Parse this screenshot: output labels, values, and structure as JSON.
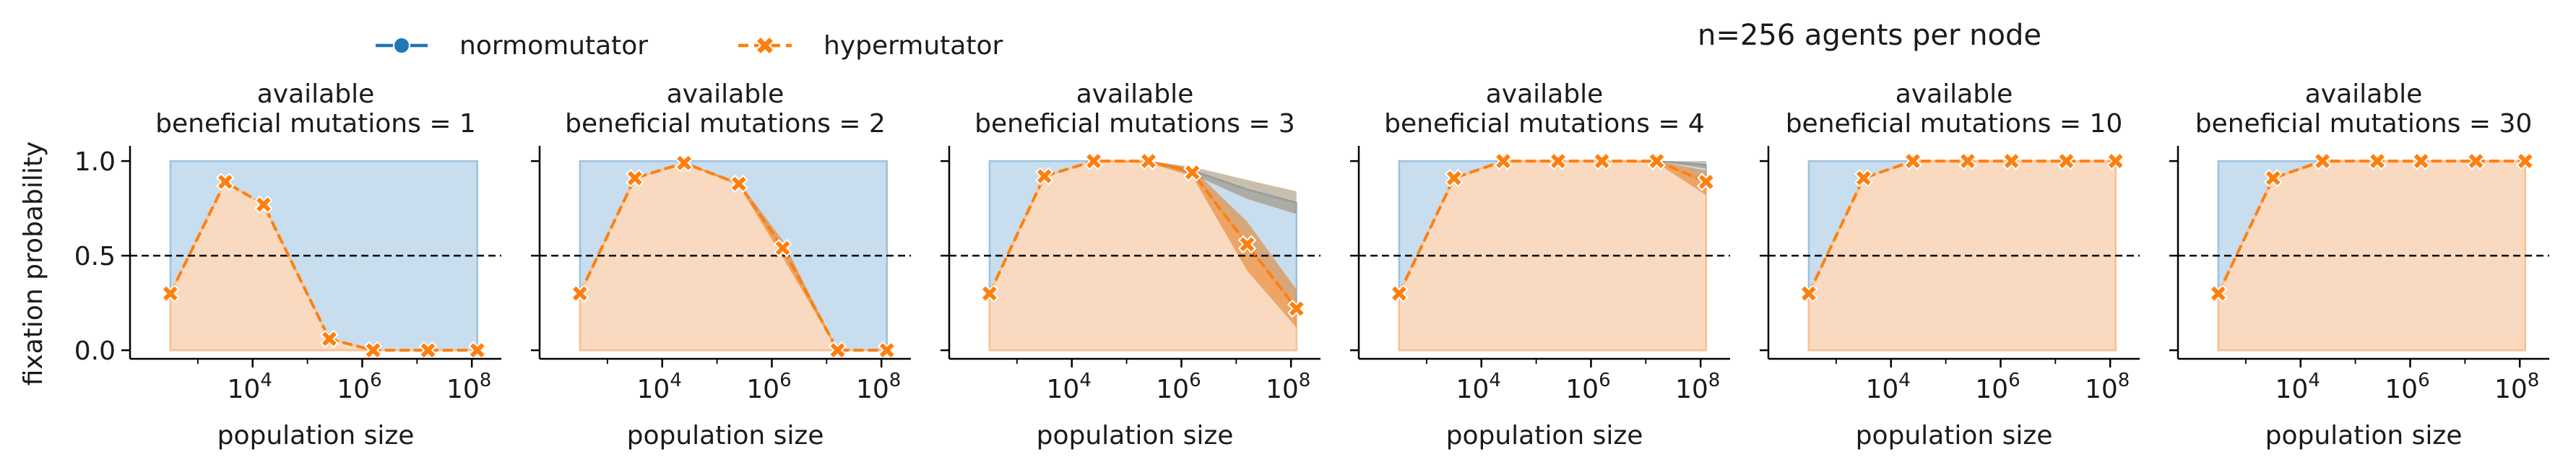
{
  "figure": {
    "suptitle": "n=256 agents per node",
    "ylabel": "fixation probability",
    "xlabel": "population size"
  },
  "legend": {
    "placement": "top-left",
    "items": [
      {
        "label": "normomutator",
        "color": "#1f77b4",
        "marker": "circle"
      },
      {
        "label": "hypermutator",
        "color": "#ff7f0e",
        "marker": "x"
      }
    ]
  },
  "colors": {
    "normomutator_band": "#c8ddee",
    "hypermutator_band": "#fdd9bd",
    "reference_line": "#000000"
  },
  "chart_data": [
    {
      "type": "line",
      "title": "available\nbeneficial mutations = 1",
      "x_scale": "log",
      "x": [
        316,
        3162,
        15849,
        251189,
        1584893,
        15848932,
        125892541
      ],
      "xlim": [
        100,
        200000000
      ],
      "x_ticks": [
        10000,
        1000000,
        100000000
      ],
      "x_tick_labels": [
        "10^4",
        "10^6",
        "10^8"
      ],
      "ylim": [
        -0.03,
        1.05
      ],
      "y_ticks": [
        0.0,
        0.5,
        1.0
      ],
      "y_tick_labels": [
        "0.0",
        "0.5",
        "1.0"
      ],
      "reference_line": 0.5,
      "series": [
        {
          "name": "normomutator",
          "values": [
            1.0,
            1.0,
            1.0,
            1.0,
            1.0,
            1.0,
            1.0
          ]
        },
        {
          "name": "hypermutator",
          "values": [
            0.3,
            0.89,
            0.77,
            0.06,
            0.0,
            0.0,
            0.0
          ],
          "lower": [
            0.3,
            0.89,
            0.77,
            0.06,
            0.0,
            0.0,
            0.0
          ],
          "upper": [
            0.3,
            0.89,
            0.77,
            0.06,
            0.0,
            0.0,
            0.0
          ]
        }
      ]
    },
    {
      "type": "line",
      "title": "available\nbeneficial mutations = 2",
      "x_scale": "log",
      "x": [
        316,
        3162,
        25119,
        251189,
        1584893,
        15848932,
        125892541
      ],
      "xlim": [
        100,
        200000000
      ],
      "x_ticks": [
        10000,
        1000000,
        100000000
      ],
      "x_tick_labels": [
        "10^4",
        "10^6",
        "10^8"
      ],
      "ylim": [
        -0.03,
        1.05
      ],
      "y_ticks": [
        0.0,
        0.5,
        1.0
      ],
      "y_tick_labels": [
        "0.0",
        "0.5",
        "1.0"
      ],
      "reference_line": 0.5,
      "series": [
        {
          "name": "normomutator",
          "values": [
            1.0,
            1.0,
            1.0,
            1.0,
            1.0,
            1.0,
            1.0
          ]
        },
        {
          "name": "hypermutator",
          "values": [
            0.3,
            0.91,
            0.99,
            0.88,
            0.54,
            0.0,
            0.0
          ],
          "lower": [
            0.3,
            0.91,
            0.99,
            0.87,
            0.49,
            0.0,
            0.0
          ],
          "upper": [
            0.3,
            0.91,
            0.99,
            0.89,
            0.58,
            0.0,
            0.0
          ]
        }
      ]
    },
    {
      "type": "line",
      "title": "available\nbeneficial mutations = 3",
      "x_scale": "log",
      "x": [
        316,
        3162,
        25119,
        251189,
        1584893,
        15848932,
        125892541
      ],
      "xlim": [
        100,
        200000000
      ],
      "x_ticks": [
        10000,
        1000000,
        100000000
      ],
      "x_tick_labels": [
        "10^4",
        "10^6",
        "10^8"
      ],
      "ylim": [
        -0.03,
        1.05
      ],
      "y_ticks": [
        0.0,
        0.5,
        1.0
      ],
      "y_tick_labels": [
        "0.0",
        "0.5",
        "1.0"
      ],
      "reference_line": 0.5,
      "series": [
        {
          "name": "normomutator",
          "values": [
            1.0,
            1.0,
            1.0,
            1.0,
            0.95,
            0.85,
            0.78
          ],
          "lower": [
            1.0,
            1.0,
            1.0,
            1.0,
            0.93,
            0.8,
            0.72
          ],
          "upper": [
            1.0,
            1.0,
            1.0,
            1.0,
            0.97,
            0.9,
            0.84
          ]
        },
        {
          "name": "hypermutator",
          "values": [
            0.3,
            0.92,
            1.0,
            1.0,
            0.94,
            0.56,
            0.22
          ],
          "lower": [
            0.3,
            0.92,
            1.0,
            0.99,
            0.92,
            0.42,
            0.12
          ],
          "upper": [
            0.3,
            0.92,
            1.0,
            1.0,
            0.96,
            0.68,
            0.32
          ]
        }
      ]
    },
    {
      "type": "line",
      "title": "available\nbeneficial mutations = 4",
      "x_scale": "log",
      "x": [
        316,
        3162,
        25119,
        251189,
        1584893,
        15848932,
        125892541
      ],
      "xlim": [
        100,
        200000000
      ],
      "x_ticks": [
        10000,
        1000000,
        100000000
      ],
      "x_tick_labels": [
        "10^4",
        "10^6",
        "10^8"
      ],
      "ylim": [
        -0.03,
        1.05
      ],
      "y_ticks": [
        0.0,
        0.5,
        1.0
      ],
      "y_tick_labels": [
        "0.0",
        "0.5",
        "1.0"
      ],
      "reference_line": 0.5,
      "series": [
        {
          "name": "normomutator",
          "values": [
            1.0,
            1.0,
            1.0,
            1.0,
            1.0,
            1.0,
            0.98
          ],
          "lower": [
            1.0,
            1.0,
            1.0,
            1.0,
            1.0,
            1.0,
            0.96
          ],
          "upper": [
            1.0,
            1.0,
            1.0,
            1.0,
            1.0,
            1.0,
            1.0
          ]
        },
        {
          "name": "hypermutator",
          "values": [
            0.3,
            0.91,
            1.0,
            1.0,
            1.0,
            1.0,
            0.89
          ],
          "lower": [
            0.3,
            0.91,
            1.0,
            1.0,
            1.0,
            0.99,
            0.82
          ],
          "upper": [
            0.3,
            0.91,
            1.0,
            1.0,
            1.0,
            1.0,
            0.95
          ]
        }
      ]
    },
    {
      "type": "line",
      "title": "available\nbeneficial mutations = 10",
      "x_scale": "log",
      "x": [
        316,
        3162,
        25119,
        251189,
        1584893,
        15848932,
        125892541
      ],
      "xlim": [
        100,
        200000000
      ],
      "x_ticks": [
        10000,
        1000000,
        100000000
      ],
      "x_tick_labels": [
        "10^4",
        "10^6",
        "10^8"
      ],
      "ylim": [
        -0.03,
        1.05
      ],
      "y_ticks": [
        0.0,
        0.5,
        1.0
      ],
      "y_tick_labels": [
        "0.0",
        "0.5",
        "1.0"
      ],
      "reference_line": 0.5,
      "series": [
        {
          "name": "normomutator",
          "values": [
            1.0,
            1.0,
            1.0,
            1.0,
            1.0,
            1.0,
            1.0
          ]
        },
        {
          "name": "hypermutator",
          "values": [
            0.3,
            0.91,
            1.0,
            1.0,
            1.0,
            1.0,
            1.0
          ]
        }
      ]
    },
    {
      "type": "line",
      "title": "available\nbeneficial mutations = 30",
      "x_scale": "log",
      "x": [
        316,
        3162,
        25119,
        251189,
        1584893,
        15848932,
        125892541
      ],
      "xlim": [
        100,
        200000000
      ],
      "x_ticks": [
        10000,
        1000000,
        100000000
      ],
      "x_tick_labels": [
        "10^4",
        "10^6",
        "10^8"
      ],
      "ylim": [
        -0.03,
        1.05
      ],
      "y_ticks": [
        0.0,
        0.5,
        1.0
      ],
      "y_tick_labels": [
        "0.0",
        "0.5",
        "1.0"
      ],
      "reference_line": 0.5,
      "series": [
        {
          "name": "normomutator",
          "values": [
            1.0,
            1.0,
            1.0,
            1.0,
            1.0,
            1.0,
            1.0
          ]
        },
        {
          "name": "hypermutator",
          "values": [
            0.3,
            0.91,
            1.0,
            1.0,
            1.0,
            1.0,
            1.0
          ]
        }
      ]
    }
  ]
}
